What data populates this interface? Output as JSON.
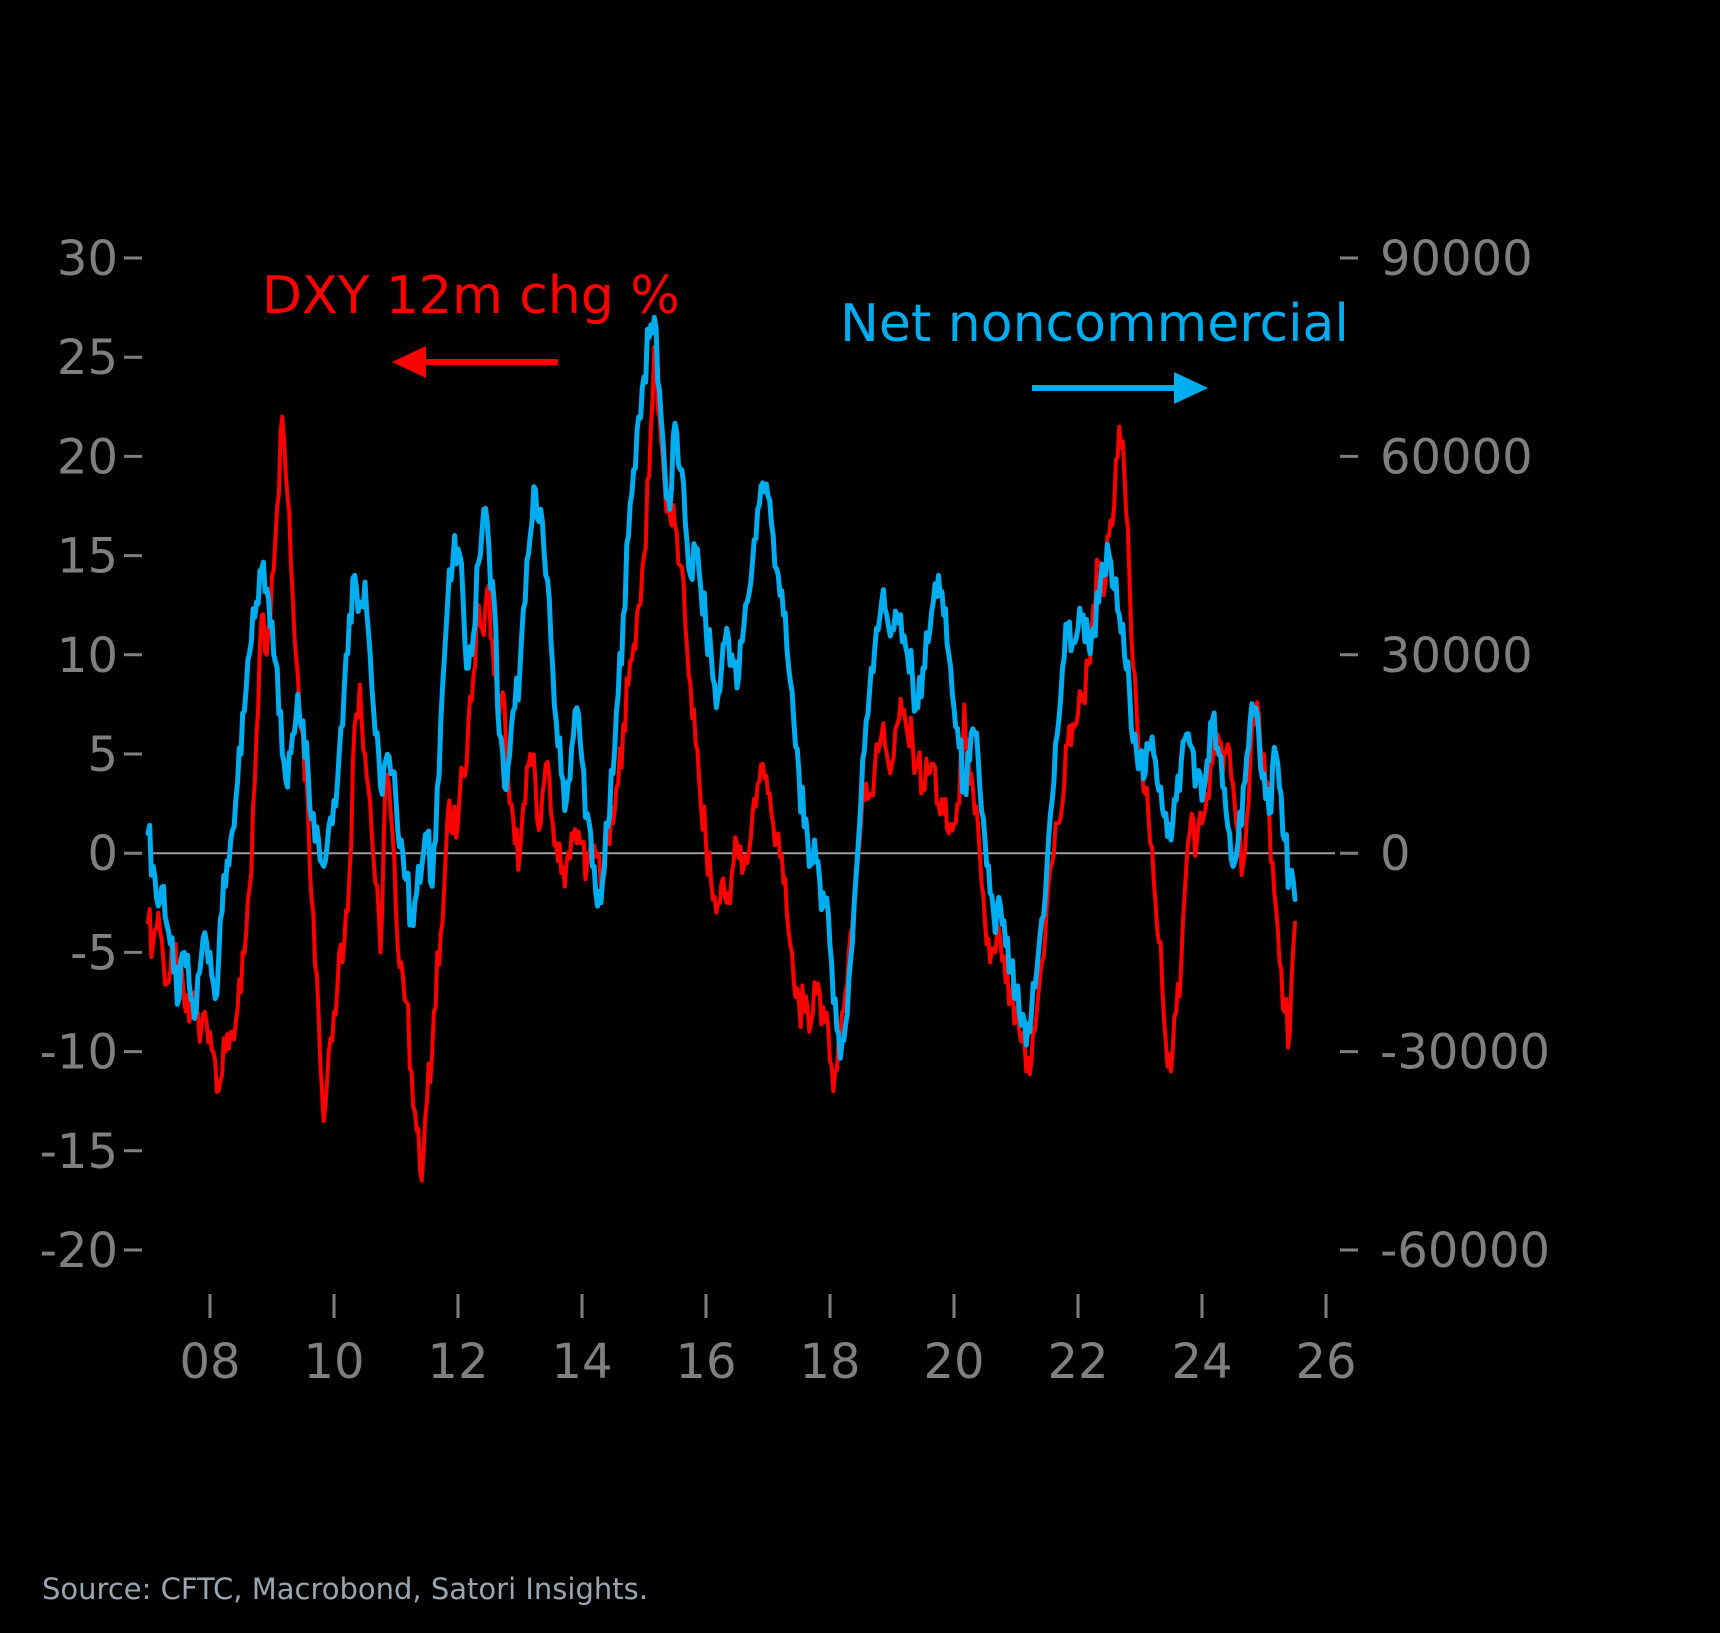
{
  "source": "Source: CFTC, Macrobond, Satori Insights.",
  "chart_data": {
    "type": "line",
    "title": "",
    "xlabel": "",
    "ylabel_left": "DXY 12m chg %",
    "ylabel_right": "Net noncommercial",
    "grid": "zero-line-only",
    "legend_position": "annotations-with-arrows",
    "colors": {
      "dxy": "#ff0000",
      "net": "#00aeef",
      "axis_text": "#7f7f7f",
      "zero_line": "#9e9e9e"
    },
    "axes": {
      "left": {
        "ticks": [
          "30",
          "25",
          "20",
          "15",
          "10",
          "5",
          "0",
          "-5",
          "-10",
          "-15",
          "-20"
        ],
        "min": -20,
        "max": 30
      },
      "right": {
        "ticks": [
          "90000",
          "60000",
          "30000",
          "0",
          "-30000",
          "-60000"
        ],
        "min": -60000,
        "max": 90000
      },
      "x": {
        "tick_labels": [
          "08",
          "10",
          "12",
          "14",
          "16",
          "18",
          "20",
          "22",
          "24",
          "26"
        ],
        "tick_years": [
          2008,
          2010,
          2012,
          2014,
          2016,
          2018,
          2020,
          2022,
          2024,
          2026
        ],
        "min": 2007.0,
        "max": 2026.2
      }
    },
    "series": [
      {
        "name": "DXY 12m chg %",
        "color": "#ff0000",
        "axis": "left",
        "x_start": 2007.0,
        "x_step": 0.0833333,
        "values": [
          -3.5,
          -4.5,
          -3.0,
          -5.5,
          -6.5,
          -5.0,
          -6.0,
          -7.5,
          -8.5,
          -7.0,
          -9.5,
          -8.0,
          -9.0,
          -10.5,
          -11.5,
          -10.0,
          -9.0,
          -8.5,
          -7.0,
          -4.0,
          -1.0,
          6.0,
          12.0,
          10.0,
          14.0,
          17.5,
          22.0,
          18.0,
          13.0,
          9.0,
          6.0,
          2.0,
          -3.0,
          -8.0,
          -13.5,
          -10.0,
          -8.0,
          -5.0,
          -4.5,
          -1.0,
          6.5,
          8.5,
          5.0,
          2.5,
          -1.5,
          -5.0,
          4.0,
          2.0,
          -3.0,
          -5.5,
          -7.5,
          -11.0,
          -14.0,
          -16.5,
          -12.5,
          -10.0,
          -5.0,
          -3.5,
          2.0,
          1.0,
          1.5,
          4.0,
          6.5,
          9.0,
          12.5,
          11.0,
          13.5,
          9.0,
          7.0,
          7.5,
          2.5,
          0.5,
          0.0,
          2.5,
          5.0,
          3.5,
          1.5,
          4.5,
          2.0,
          0.5,
          -1.0,
          -0.5,
          1.0,
          0.5,
          0.5,
          -0.5,
          -0.5,
          0.0,
          -1.5,
          0.5,
          1.5,
          3.5,
          6.5,
          8.5,
          10.5,
          12.5,
          15.0,
          19.0,
          25.5,
          22.0,
          18.5,
          17.0,
          16.5,
          14.5,
          11.5,
          8.5,
          5.5,
          2.5,
          0.5,
          -1.5,
          -3.0,
          -1.5,
          -2.5,
          -1.0,
          0.5,
          -1.0,
          -0.5,
          2.0,
          3.5,
          4.5,
          3.0,
          1.5,
          1.0,
          -1.5,
          -4.0,
          -6.5,
          -7.5,
          -8.0,
          -9.0,
          -6.5,
          -7.0,
          -8.5,
          -10.5,
          -11.0,
          -9.0,
          -7.0,
          -4.0,
          -1.5,
          1.5,
          3.5,
          3.0,
          5.5,
          6.0,
          5.0,
          4.5,
          6.5,
          7.0,
          6.0,
          5.5,
          4.5,
          3.5,
          4.0,
          4.5,
          2.5,
          2.0,
          1.0,
          1.5,
          2.5,
          7.5,
          3.5,
          2.0,
          0.0,
          -3.5,
          -5.5,
          -5.0,
          -4.5,
          -6.5,
          -7.5,
          -8.5,
          -9.5,
          -11.0,
          -10.5,
          -8.0,
          -5.5,
          -2.5,
          -0.5,
          1.5,
          2.5,
          5.5,
          6.5,
          7.0,
          8.0,
          9.5,
          12.5,
          14.5,
          13.0,
          16.0,
          17.5,
          21.5,
          19.0,
          13.5,
          9.0,
          5.0,
          3.0,
          0.5,
          -2.5,
          -4.5,
          -9.5,
          -11.0,
          -8.0,
          -5.5,
          -0.5,
          2.0,
          0.5,
          1.5,
          3.0,
          4.5,
          6.0,
          4.0,
          5.5,
          3.5,
          1.0,
          -0.5,
          2.5,
          6.5,
          7.0,
          5.0,
          2.0,
          -2.0,
          -5.5,
          -8.0,
          -9.0,
          -3.5
        ]
      },
      {
        "name": "Net noncommercial",
        "color": "#00aeef",
        "axis": "right",
        "x_start": 2007.0,
        "x_step": 0.0833333,
        "values": [
          3000,
          -2000,
          -8000,
          -5000,
          -12000,
          -18000,
          -22000,
          -15000,
          -20000,
          -25000,
          -18000,
          -12000,
          -15000,
          -22000,
          -10000,
          -5000,
          2000,
          8000,
          15000,
          25000,
          32000,
          38000,
          43000,
          40000,
          35000,
          28000,
          15000,
          10000,
          18000,
          24000,
          20000,
          12000,
          6000,
          2000,
          -2000,
          4000,
          8000,
          15000,
          25000,
          36000,
          42000,
          38000,
          41000,
          30000,
          18000,
          10000,
          14000,
          12000,
          8000,
          2000,
          -4000,
          -10000,
          -6000,
          -2000,
          3000,
          -5000,
          10000,
          25000,
          38000,
          44000,
          46000,
          38000,
          28000,
          33000,
          44000,
          52000,
          46000,
          38000,
          18000,
          10000,
          15000,
          22000,
          28000,
          38000,
          48000,
          55000,
          52000,
          42000,
          32000,
          20000,
          12000,
          8000,
          16000,
          22000,
          14000,
          6000,
          -2000,
          -8000,
          -4000,
          4000,
          12000,
          24000,
          36000,
          48000,
          58000,
          66000,
          72000,
          78000,
          81000,
          70000,
          58000,
          52000,
          65000,
          58000,
          50000,
          42000,
          46000,
          40000,
          34000,
          30000,
          22000,
          28000,
          34000,
          30000,
          25000,
          32000,
          38000,
          44000,
          52000,
          56000,
          54000,
          48000,
          42000,
          36000,
          28000,
          20000,
          12000,
          4000,
          -2000,
          2000,
          -4000,
          -8000,
          -14000,
          -22000,
          -31000,
          -26000,
          -16000,
          -4000,
          8000,
          20000,
          28000,
          34000,
          38000,
          36000,
          34000,
          36000,
          32000,
          30000,
          26000,
          22000,
          28000,
          32000,
          38000,
          42000,
          36000,
          30000,
          22000,
          16000,
          10000,
          14000,
          18000,
          10000,
          2000,
          -6000,
          -12000,
          -8000,
          -14000,
          -18000,
          -22000,
          -26000,
          -29000,
          -24000,
          -18000,
          -10000,
          -2000,
          8000,
          18000,
          28000,
          34000,
          32000,
          34000,
          36000,
          32000,
          34000,
          38000,
          42000,
          45000,
          40000,
          36000,
          30000,
          24000,
          18000,
          14000,
          12000,
          16000,
          14000,
          10000,
          6000,
          2000,
          8000,
          14000,
          18000,
          16000,
          12000,
          8000,
          14000,
          20000,
          16000,
          10000,
          4000,
          -2000,
          2000,
          10000,
          16000,
          21000,
          18000,
          12000,
          6000,
          16000,
          10000,
          2000,
          -4000,
          -7000
        ]
      }
    ]
  }
}
